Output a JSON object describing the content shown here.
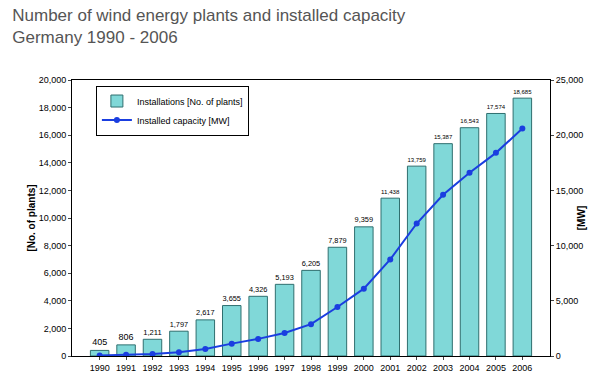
{
  "chart_data": {
    "type": "bar",
    "title": "Number of wind energy plants and installed capacity\nGermany 1990 - 2006",
    "categories": [
      "1990",
      "1991",
      "1992",
      "1993",
      "1994",
      "1995",
      "1996",
      "1997",
      "1998",
      "1999",
      "2000",
      "2001",
      "2002",
      "2003",
      "2004",
      "2005",
      "2006"
    ],
    "series": [
      {
        "name": "Installations [No. of plants]",
        "type": "bar",
        "color": "#80d8d8",
        "data_labels": true,
        "values": [
          405,
          806,
          1211,
          1797,
          2617,
          3655,
          4326,
          5193,
          6205,
          7879,
          9359,
          11438,
          13759,
          15387,
          16543,
          17574,
          18685
        ],
        "value_labels": [
          "405",
          "806",
          "1,211",
          "1,797",
          "2,617",
          "3,655",
          "4,326",
          "5,193",
          "6,205",
          "7,879",
          "9,359",
          "11,438",
          "13,759",
          "15,387",
          "16,543",
          "17,574",
          "18,685"
        ]
      },
      {
        "name": "Installed capacity [MW]",
        "type": "line",
        "color": "#1a3ee0",
        "marker": "circle",
        "line_style": "solid",
        "axis": "y2",
        "values": [
          56,
          110,
          180,
          330,
          630,
          1120,
          1550,
          2080,
          2880,
          4440,
          6100,
          8750,
          12000,
          14600,
          16600,
          18400,
          20600
        ]
      }
    ],
    "ylabel": "[No. of plants]",
    "y2label": "[MW]",
    "ylim": [
      0,
      20000
    ],
    "yticks": [
      0,
      {
        "value": 2000,
        "label": "2,000"
      },
      {
        "value": 4000,
        "label": "4,000"
      },
      {
        "value": 6000,
        "label": "6,000"
      },
      {
        "value": 8000,
        "label": "8,000"
      },
      {
        "value": 10000,
        "label": "10,000"
      },
      {
        "value": 12000,
        "label": "12,000"
      },
      {
        "value": 14000,
        "label": "14,000"
      },
      {
        "value": 16000,
        "label": "16,000"
      },
      {
        "value": 18000,
        "label": "18,000"
      },
      {
        "value": 20000,
        "label": "20,000"
      }
    ],
    "y2lim": [
      0,
      25000
    ],
    "y2ticks": [
      0,
      {
        "value": 5000,
        "label": "5,000"
      },
      {
        "value": 10000,
        "label": "10,000"
      },
      {
        "value": 15000,
        "label": "15,000"
      },
      {
        "value": 20000,
        "label": "20,000"
      },
      {
        "value": 25000,
        "label": "25,000"
      }
    ],
    "grid": false,
    "legend": "upper left"
  }
}
